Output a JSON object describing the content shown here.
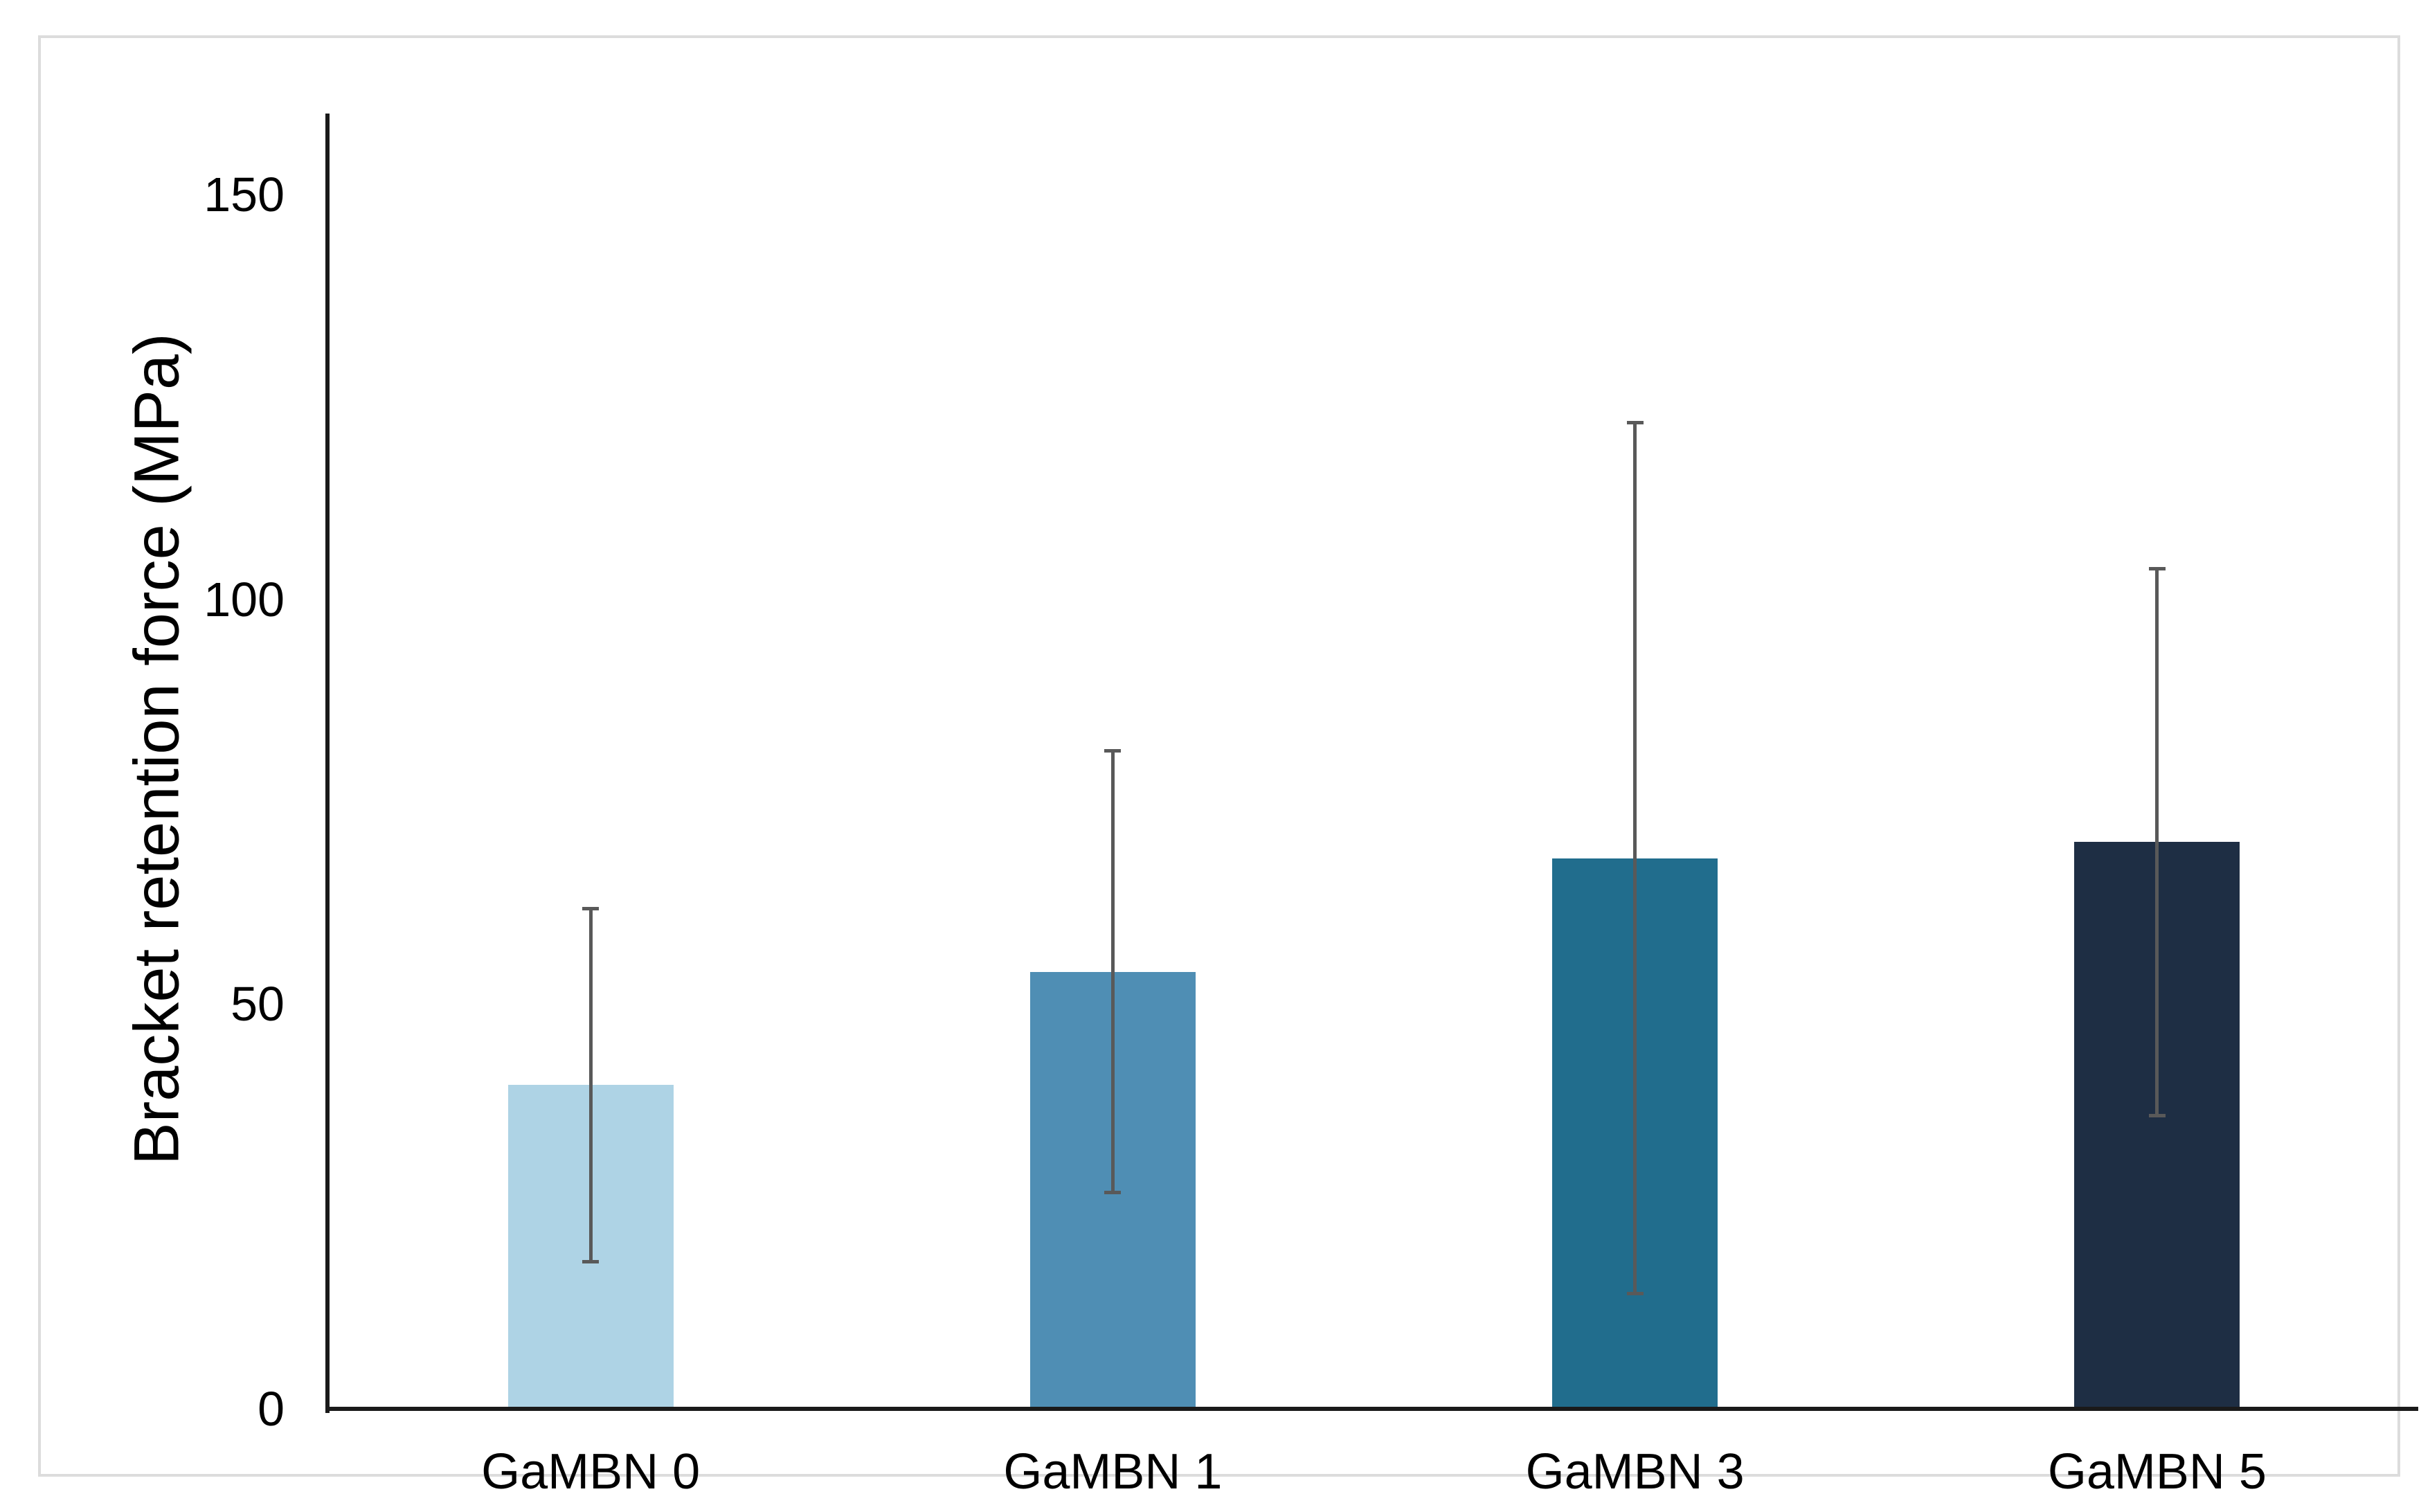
{
  "figure": {
    "background": "#ffffff",
    "border_color": "#dcdcdc"
  },
  "chart_data": {
    "type": "bar",
    "title": "",
    "xlabel": "",
    "ylabel": "Bracket retention force (MPa)",
    "categories": [
      "GaMBN 0",
      "GaMBN 1",
      "GaMBN 3",
      "GaMBN 5"
    ],
    "values": [
      40,
      54,
      68,
      70
    ],
    "error_bars_plus_minus": [
      22,
      27.5,
      54,
      34
    ],
    "y_ticks": [
      0,
      50,
      100,
      150
    ],
    "ylim": [
      0,
      160
    ],
    "grid": false,
    "legend": "none",
    "bar_colors": [
      "#aed3e5",
      "#4f8eb4",
      "#216d8d",
      "#1e2e44"
    ],
    "error_bar_color": "#595959",
    "axis_color": "#1a1a1a",
    "text_color": "#000000"
  }
}
